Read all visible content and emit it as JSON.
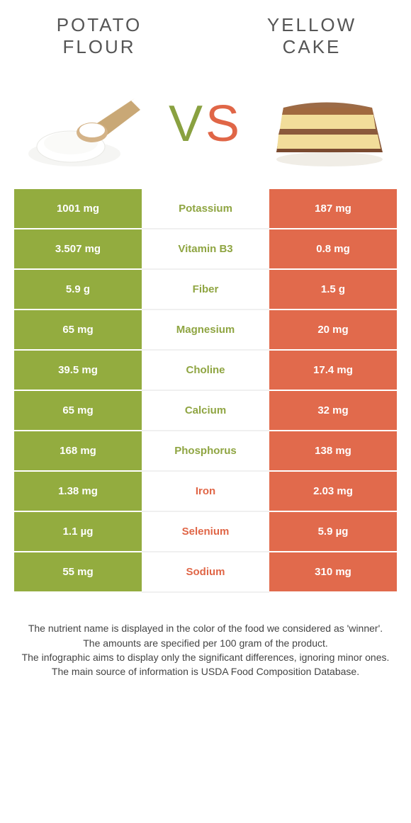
{
  "titles": {
    "left": "Potato\nflour",
    "right": "Yellow\ncake"
  },
  "vs": {
    "v": "V",
    "s": "S"
  },
  "colors": {
    "left_bg": "#93ac3f",
    "right_bg": "#e16a4c",
    "mid_left_text": "#8fa542",
    "mid_right_text": "#e06647",
    "row_border": "#ffffff",
    "page_bg": "#ffffff"
  },
  "rows": [
    {
      "nutrient": "Potassium",
      "left": "1001 mg",
      "right": "187 mg",
      "winner": "left"
    },
    {
      "nutrient": "Vitamin B3",
      "left": "3.507 mg",
      "right": "0.8 mg",
      "winner": "left"
    },
    {
      "nutrient": "Fiber",
      "left": "5.9 g",
      "right": "1.5 g",
      "winner": "left"
    },
    {
      "nutrient": "Magnesium",
      "left": "65 mg",
      "right": "20 mg",
      "winner": "left"
    },
    {
      "nutrient": "Choline",
      "left": "39.5 mg",
      "right": "17.4 mg",
      "winner": "left"
    },
    {
      "nutrient": "Calcium",
      "left": "65 mg",
      "right": "32 mg",
      "winner": "left"
    },
    {
      "nutrient": "Phosphorus",
      "left": "168 mg",
      "right": "138 mg",
      "winner": "left"
    },
    {
      "nutrient": "Iron",
      "left": "1.38 mg",
      "right": "2.03 mg",
      "winner": "right"
    },
    {
      "nutrient": "Selenium",
      "left": "1.1 µg",
      "right": "5.9 µg",
      "winner": "right"
    },
    {
      "nutrient": "Sodium",
      "left": "55 mg",
      "right": "310 mg",
      "winner": "right"
    }
  ],
  "footer_lines": [
    "The nutrient name is displayed in the color of the food we considered as 'winner'.",
    "The amounts are specified per 100 gram of the product.",
    "The infographic aims to display only the significant differences, ignoring minor ones.",
    "The main source of information is USDA Food Composition Database."
  ]
}
